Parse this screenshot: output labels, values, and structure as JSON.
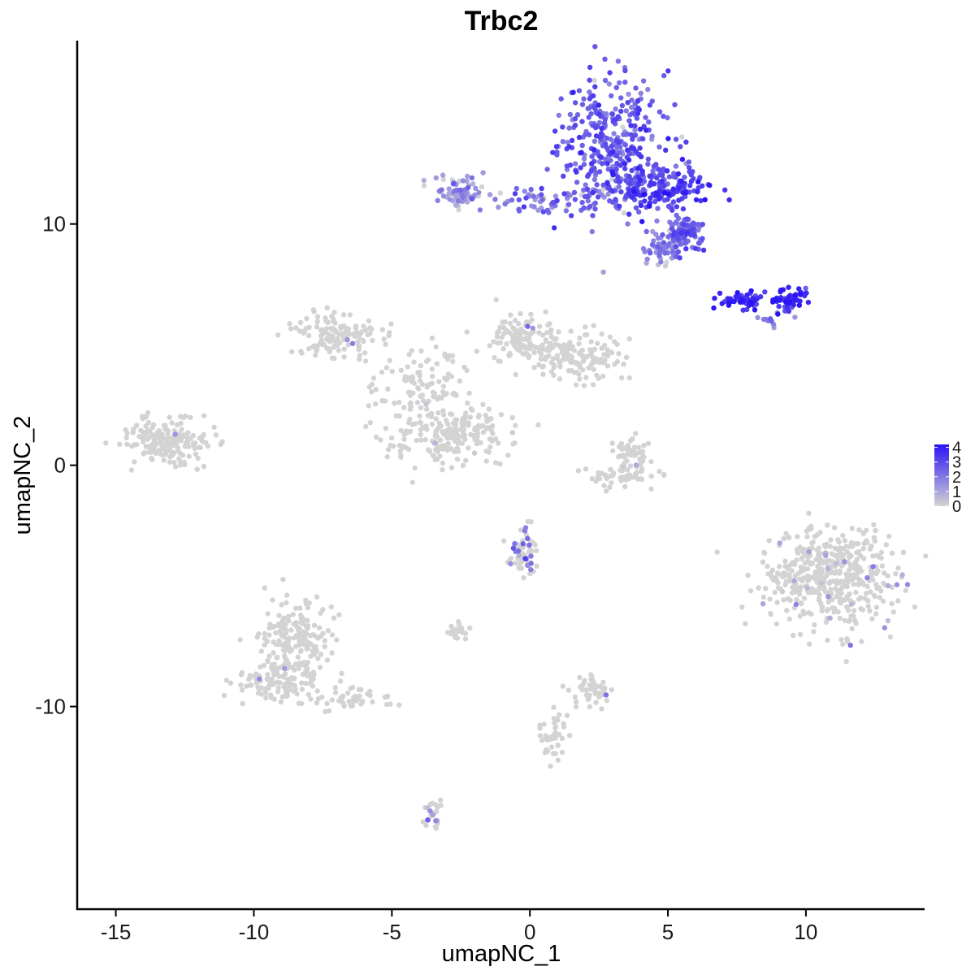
{
  "chart_data": {
    "type": "scatter",
    "title": "Trbc2",
    "xlabel": "umapNC_1",
    "ylabel": "umapNC_2",
    "xlim": [
      -16.4,
      14.3
    ],
    "ylim": [
      -18.4,
      17.6
    ],
    "x_ticks": [
      -15,
      -10,
      -5,
      0,
      5,
      10
    ],
    "x_tick_labels": [
      "-15",
      "-10",
      "-5",
      "0",
      "5",
      "10"
    ],
    "y_ticks": [
      -10,
      0,
      10
    ],
    "y_tick_labels": [
      "-10",
      "0",
      "10"
    ],
    "grid": false,
    "legend_position": "right",
    "color_scale": {
      "low_color": "#d3d3d3",
      "high_color": "#2a14f5",
      "breaks": [
        0,
        1,
        2,
        3,
        4
      ],
      "labels": [
        "0",
        "1",
        "2",
        "3",
        "4"
      ],
      "min": 0,
      "max": 4.2
    },
    "point_clusters": [
      {
        "x": 3.0,
        "y": 13.5,
        "sx": 1.2,
        "sy": 1.7,
        "n": 330,
        "expr_mean": 2.6,
        "expr_prob": 0.96
      },
      {
        "x": 4.5,
        "y": 11.5,
        "sx": 1.1,
        "sy": 0.6,
        "n": 210,
        "expr_mean": 3.0,
        "expr_prob": 0.96
      },
      {
        "x": 5.6,
        "y": 9.6,
        "sx": 0.55,
        "sy": 0.45,
        "n": 110,
        "expr_mean": 2.5,
        "expr_prob": 0.92
      },
      {
        "x": 4.8,
        "y": 9.0,
        "sx": 0.5,
        "sy": 0.4,
        "n": 50,
        "expr_mean": 1.8,
        "expr_prob": 0.9
      },
      {
        "x": 0.8,
        "y": 11.0,
        "sx": 1.4,
        "sy": 0.3,
        "n": 70,
        "expr_mean": 2.2,
        "expr_prob": 0.9
      },
      {
        "x": -2.6,
        "y": 11.3,
        "sx": 0.6,
        "sy": 0.45,
        "n": 70,
        "expr_mean": 1.3,
        "expr_prob": 0.85
      },
      {
        "x": 7.7,
        "y": 6.8,
        "sx": 0.6,
        "sy": 0.2,
        "n": 45,
        "expr_mean": 3.7,
        "expr_prob": 1.0
      },
      {
        "x": 9.4,
        "y": 6.9,
        "sx": 0.45,
        "sy": 0.3,
        "n": 55,
        "expr_mean": 3.6,
        "expr_prob": 1.0
      },
      {
        "x": 8.7,
        "y": 6.1,
        "sx": 0.3,
        "sy": 0.2,
        "n": 10,
        "expr_mean": 2.0,
        "expr_prob": 1.0
      },
      {
        "x": -7.0,
        "y": 5.4,
        "sx": 0.9,
        "sy": 0.55,
        "n": 140,
        "expr_mean": 1.0,
        "expr_prob": 0.01
      },
      {
        "x": -4.0,
        "y": 3.3,
        "sx": 1.2,
        "sy": 1.0,
        "n": 110,
        "expr_mean": 1.0,
        "expr_prob": 0.01
      },
      {
        "x": -2.8,
        "y": 1.3,
        "sx": 1.4,
        "sy": 0.8,
        "n": 200,
        "expr_mean": 1.0,
        "expr_prob": 0.01
      },
      {
        "x": -0.3,
        "y": 5.3,
        "sx": 0.8,
        "sy": 0.6,
        "n": 110,
        "expr_mean": 1.0,
        "expr_prob": 0.01
      },
      {
        "x": 1.6,
        "y": 4.4,
        "sx": 1.2,
        "sy": 0.55,
        "n": 140,
        "expr_mean": 1.0,
        "expr_prob": 0.01
      },
      {
        "x": -13.2,
        "y": 1.0,
        "sx": 1.1,
        "sy": 0.6,
        "n": 180,
        "expr_mean": 1.0,
        "expr_prob": 0.01
      },
      {
        "x": 3.7,
        "y": 0.4,
        "sx": 0.4,
        "sy": 0.55,
        "n": 50,
        "expr_mean": 1.0,
        "expr_prob": 0.02
      },
      {
        "x": 3.4,
        "y": -0.5,
        "sx": 0.8,
        "sy": 0.3,
        "n": 50,
        "expr_mean": 1.0,
        "expr_prob": 0.01
      },
      {
        "x": 10.9,
        "y": -4.7,
        "sx": 1.5,
        "sy": 1.3,
        "n": 480,
        "expr_mean": 1.2,
        "expr_prob": 0.04
      },
      {
        "x": -0.2,
        "y": -3.6,
        "sx": 0.35,
        "sy": 0.6,
        "n": 70,
        "expr_mean": 2.0,
        "expr_prob": 0.22
      },
      {
        "x": -8.5,
        "y": -7.3,
        "sx": 0.8,
        "sy": 1.1,
        "n": 200,
        "expr_mean": 1.0,
        "expr_prob": 0.01
      },
      {
        "x": -9.4,
        "y": -9.0,
        "sx": 0.8,
        "sy": 0.45,
        "n": 90,
        "expr_mean": 1.0,
        "expr_prob": 0.01
      },
      {
        "x": -6.4,
        "y": -9.6,
        "sx": 1.0,
        "sy": 0.3,
        "n": 50,
        "expr_mean": 1.0,
        "expr_prob": 0.01
      },
      {
        "x": -3.5,
        "y": -14.6,
        "sx": 0.2,
        "sy": 0.6,
        "n": 25,
        "expr_mean": 1.5,
        "expr_prob": 0.12
      },
      {
        "x": 2.2,
        "y": -9.3,
        "sx": 0.5,
        "sy": 0.4,
        "n": 50,
        "expr_mean": 1.5,
        "expr_prob": 0.06
      },
      {
        "x": 0.9,
        "y": -11.2,
        "sx": 0.4,
        "sy": 0.7,
        "n": 40,
        "expr_mean": 1.0,
        "expr_prob": 0.01
      },
      {
        "x": -2.5,
        "y": -6.9,
        "sx": 0.3,
        "sy": 0.25,
        "n": 25,
        "expr_mean": 2.0,
        "expr_prob": 0.1
      }
    ]
  }
}
